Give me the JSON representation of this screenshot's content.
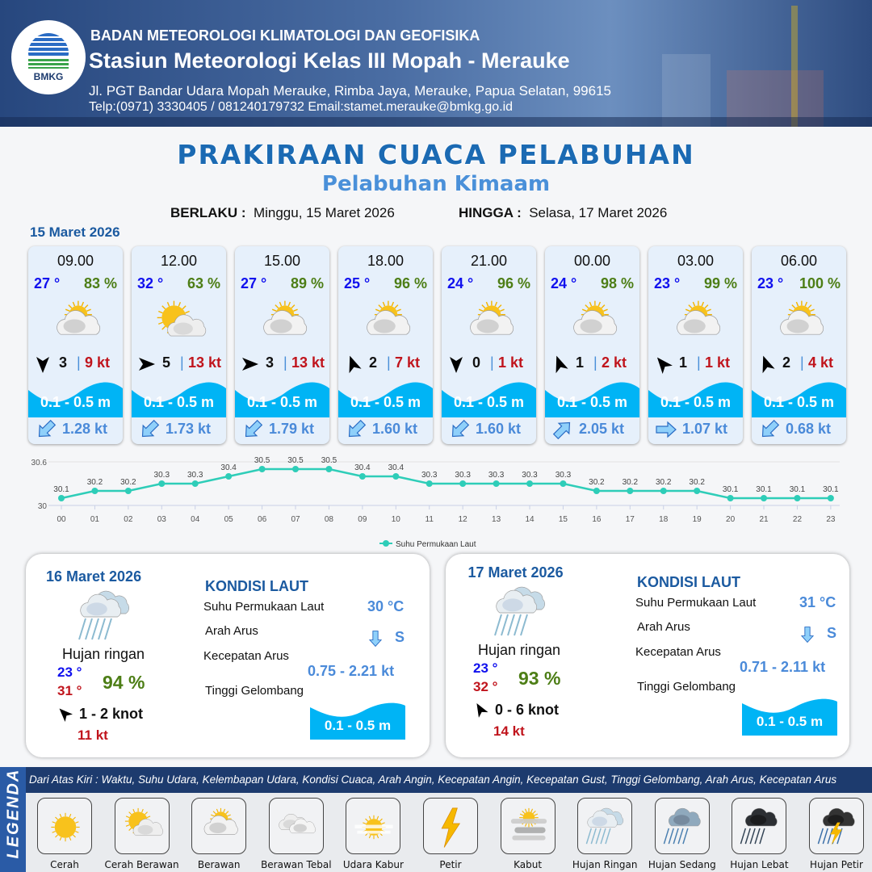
{
  "header": {
    "logo_text": "BMKG",
    "agency": "BADAN METEOROLOGI KLIMATOLOGI DAN GEOFISIKA",
    "station": "Stasiun Meteorologi Kelas III Mopah - Merauke",
    "address": "Jl. PGT Bandar Udara Mopah Merauke, Rimba Jaya, Merauke, Papua Selatan, 99615",
    "contact": "Telp:(0971) 3330405 / 081240179732  Email:stamet.merauke@bmkg.go.id"
  },
  "title": "PRAKIRAAN CUACA PELABUHAN",
  "subtitle": "Pelabuhan Kimaam",
  "validity": {
    "from_label": "BERLAKU :",
    "from": "Minggu, 15 Maret 2026",
    "to_label": "HINGGA :",
    "to": "Selasa, 17 Maret 2026"
  },
  "day1": {
    "date": "15 Maret 2026",
    "cards": [
      {
        "time": "09.00",
        "temp": "27 °",
        "hum": "83 %",
        "icon": "berawan",
        "wind_dir_deg": 180,
        "wind": "3",
        "gust": "9 kt",
        "wave": "0.1 - 0.5 m",
        "current_dir_deg": 225,
        "current": "1.28 kt"
      },
      {
        "time": "12.00",
        "temp": "32 °",
        "hum": "63 %",
        "icon": "cerah-berawan",
        "wind_dir_deg": 90,
        "wind": "5",
        "gust": "13 kt",
        "wave": "0.1 - 0.5 m",
        "current_dir_deg": 225,
        "current": "1.73 kt"
      },
      {
        "time": "15.00",
        "temp": "27 °",
        "hum": "89 %",
        "icon": "berawan",
        "wind_dir_deg": 90,
        "wind": "3",
        "gust": "13 kt",
        "wave": "0.1 - 0.5 m",
        "current_dir_deg": 225,
        "current": "1.79 kt"
      },
      {
        "time": "18.00",
        "temp": "25 °",
        "hum": "96 %",
        "icon": "berawan",
        "wind_dir_deg": 340,
        "wind": "2",
        "gust": "7 kt",
        "wave": "0.1 - 0.5 m",
        "current_dir_deg": 225,
        "current": "1.60 kt"
      },
      {
        "time": "21.00",
        "temp": "24 °",
        "hum": "96 %",
        "icon": "berawan",
        "wind_dir_deg": 180,
        "wind": "0",
        "gust": "1 kt",
        "wave": "0.1 - 0.5 m",
        "current_dir_deg": 225,
        "current": "1.60 kt"
      },
      {
        "time": "00.00",
        "temp": "24 °",
        "hum": "98 %",
        "icon": "berawan",
        "wind_dir_deg": 340,
        "wind": "1",
        "gust": "2 kt",
        "wave": "0.1 - 0.5 m",
        "current_dir_deg": 45,
        "current": "2.05 kt"
      },
      {
        "time": "03.00",
        "temp": "23 °",
        "hum": "99 %",
        "icon": "berawan",
        "wind_dir_deg": 320,
        "wind": "1",
        "gust": "1 kt",
        "wave": "0.1 - 0.5 m",
        "current_dir_deg": 90,
        "current": "1.07 kt"
      },
      {
        "time": "06.00",
        "temp": "23 °",
        "hum": "100 %",
        "icon": "berawan",
        "wind_dir_deg": 340,
        "wind": "2",
        "gust": "4 kt",
        "wave": "0.1 - 0.5 m",
        "current_dir_deg": 225,
        "current": "0.68 kt"
      }
    ]
  },
  "chart_data": {
    "type": "line",
    "x": [
      "00",
      "01",
      "02",
      "03",
      "04",
      "05",
      "06",
      "07",
      "08",
      "09",
      "10",
      "11",
      "12",
      "13",
      "14",
      "15",
      "16",
      "17",
      "18",
      "19",
      "20",
      "21",
      "22",
      "23"
    ],
    "series": [
      {
        "name": "Suhu Permukaan Laut",
        "values": [
          30.1,
          30.2,
          30.2,
          30.3,
          30.3,
          30.4,
          30.5,
          30.5,
          30.5,
          30.4,
          30.4,
          30.3,
          30.3,
          30.3,
          30.3,
          30.3,
          30.2,
          30.2,
          30.2,
          30.2,
          30.1,
          30.1,
          30.1,
          30.1
        ]
      }
    ],
    "y_ticks": [
      "30",
      "30.6"
    ],
    "ylim": [
      30,
      30.6
    ],
    "legend": "bottom",
    "color": "#2ecdb8"
  },
  "days": [
    {
      "date": "16 Maret 2026",
      "icon": "hujan-ringan",
      "condition": "Hujan ringan",
      "tmin": "23 °",
      "tmax": "31 °",
      "hum": "94 %",
      "wind_dir_deg": 315,
      "wind": "1  - 2 knot",
      "gust": "11 kt",
      "sea": {
        "heading": "KONDISI LAUT",
        "sst_label": "Suhu Permukaan Laut",
        "sst": "30 °C",
        "dir_label": "Arah Arus",
        "dir": "S",
        "dir_deg": 180,
        "speed_label": "Kecepatan Arus",
        "speed": "0.75 - 2.21 kt",
        "wave_label": "Tinggi Gelombang",
        "wave": "0.1 - 0.5 m"
      }
    },
    {
      "date": "17 Maret 2026",
      "icon": "hujan-ringan",
      "condition": "Hujan ringan",
      "tmin": "23 °",
      "tmax": "32 °",
      "hum": "93 %",
      "wind_dir_deg": 330,
      "wind": "0  - 6 knot",
      "gust": "14 kt",
      "sea": {
        "heading": "KONDISI LAUT",
        "sst_label": "Suhu Permukaan Laut",
        "sst": "31 °C",
        "dir_label": "Arah Arus",
        "dir": "S",
        "dir_deg": 180,
        "speed_label": "Kecepatan Arus",
        "speed": "0.71 - 2.11 kt",
        "wave_label": "Tinggi Gelombang",
        "wave": "0.1 - 0.5 m"
      }
    }
  ],
  "legend": {
    "title": "LEGENDA",
    "description": "Dari Atas Kiri : Waktu, Suhu Udara, Kelembapan Udara, Kondisi Cuaca, Arah Angin, Kecepatan Angin, Kecepatan Gust, Tinggi Gelombang, Arah Arus, Kecepatan Arus",
    "items": [
      {
        "label": "Cerah",
        "icon": "cerah"
      },
      {
        "label": "Cerah Berawan",
        "icon": "cerah-berawan"
      },
      {
        "label": "Berawan",
        "icon": "berawan"
      },
      {
        "label": "Berawan Tebal",
        "icon": "berawan-tebal"
      },
      {
        "label": "Udara Kabur",
        "icon": "udara-kabur"
      },
      {
        "label": "Petir",
        "icon": "petir"
      },
      {
        "label": "Kabut",
        "icon": "kabut"
      },
      {
        "label": "Hujan Ringan",
        "icon": "hujan-ringan"
      },
      {
        "label": "Hujan Sedang",
        "icon": "hujan-sedang"
      },
      {
        "label": "Hujan Lebat",
        "icon": "hujan-lebat"
      },
      {
        "label": "Hujan Petir",
        "icon": "hujan-petir"
      }
    ]
  },
  "colors": {
    "brand": "#1d3b6e",
    "title": "#1b6ab3",
    "wave": "#00b4f5",
    "temp": "#1010ee",
    "temp_max": "#c0141c",
    "humidity": "#4d7e16",
    "gust": "#c0141c",
    "current": "#4a8ad9"
  }
}
